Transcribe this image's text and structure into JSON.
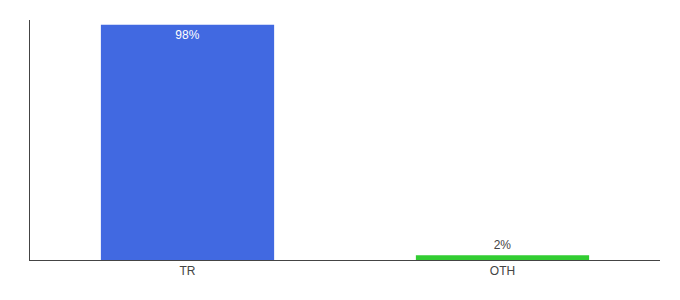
{
  "chart_data": {
    "type": "bar",
    "categories": [
      "TR",
      "OTH"
    ],
    "values": [
      98,
      2
    ],
    "value_labels": [
      "98%",
      "2%"
    ],
    "colors": [
      "#4169E1",
      "#32CD32"
    ],
    "data_labels": true,
    "ylim": [
      0,
      100
    ],
    "tick_labels": "x",
    "grid": false
  }
}
